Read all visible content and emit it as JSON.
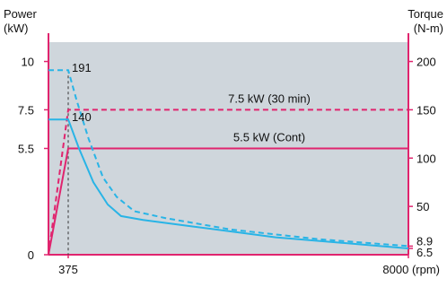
{
  "chart_data": {
    "type": "line",
    "left_axis": {
      "title_line1": "Power",
      "title_line2": "(kW)",
      "ticks": [
        {
          "value": 0,
          "label": "0"
        },
        {
          "value": 5.5,
          "label": "5.5"
        },
        {
          "value": 7.5,
          "label": "7.5"
        },
        {
          "value": 10,
          "label": "10"
        }
      ],
      "range": [
        0,
        11
      ]
    },
    "right_axis": {
      "title_line1": "Torque",
      "title_line2": "(N-m)",
      "ticks": [
        {
          "value": 6.5,
          "label": "6.5"
        },
        {
          "value": 8.9,
          "label": "8.9"
        },
        {
          "value": 50,
          "label": "50"
        },
        {
          "value": 100,
          "label": "100"
        },
        {
          "value": 150,
          "label": "150"
        },
        {
          "value": 200,
          "label": "200"
        }
      ],
      "range": [
        0,
        220
      ]
    },
    "x_axis": {
      "ticks": [
        {
          "value": 375,
          "label": "375"
        },
        {
          "value": 8000,
          "label": "8000 (rpm)"
        }
      ],
      "range": [
        0,
        8000
      ]
    },
    "series": [
      {
        "name": "7.5 kW (30 min)",
        "kind": "power",
        "style": "dashed",
        "color": "#e0246e",
        "points": [
          [
            0,
            0
          ],
          [
            375,
            7.5
          ],
          [
            8000,
            7.5
          ]
        ]
      },
      {
        "name": "5.5 kW (Cont)",
        "kind": "power",
        "style": "solid",
        "color": "#e0246e",
        "points": [
          [
            0,
            0
          ],
          [
            375,
            5.5
          ],
          [
            8000,
            5.5
          ]
        ]
      },
      {
        "kind": "torque",
        "style": "dashed",
        "color": "#29b4e6",
        "points": [
          [
            0,
            191
          ],
          [
            375,
            191
          ],
          [
            550,
            160
          ],
          [
            800,
            120
          ],
          [
            1100,
            80
          ],
          [
            1400,
            60
          ],
          [
            1800,
            45
          ],
          [
            2500,
            38
          ],
          [
            4000,
            26
          ],
          [
            6000,
            16
          ],
          [
            8000,
            8.9
          ]
        ]
      },
      {
        "kind": "torque",
        "style": "solid",
        "color": "#29b4e6",
        "points": [
          [
            0,
            140
          ],
          [
            375,
            140
          ],
          [
            600,
            110
          ],
          [
            900,
            75
          ],
          [
            1200,
            52
          ],
          [
            1500,
            40
          ],
          [
            2000,
            36
          ],
          [
            3000,
            30
          ],
          [
            5000,
            18
          ],
          [
            8000,
            6.5
          ]
        ]
      }
    ],
    "annotations": [
      {
        "text": "191"
      },
      {
        "text": "140"
      }
    ],
    "grid": false,
    "plot_background": "#cfd6dc",
    "axis_color": "#e0246e"
  }
}
